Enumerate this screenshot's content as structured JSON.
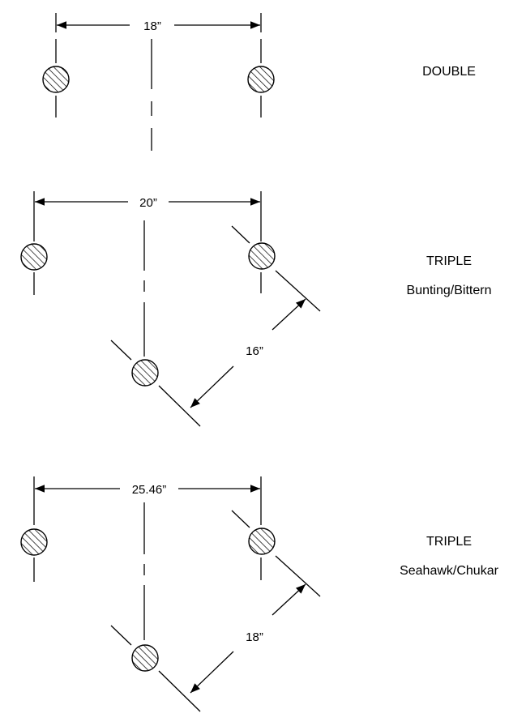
{
  "diagrams": [
    {
      "label": "DOUBLE",
      "sublabel": "",
      "width_dim": "18”",
      "diag_dim": ""
    },
    {
      "label": "TRIPLE",
      "sublabel": "Bunting/Bittern",
      "width_dim": "20”",
      "diag_dim": "16”"
    },
    {
      "label": "TRIPLE",
      "sublabel": "Seahawk/Chukar",
      "width_dim": "25.46”",
      "diag_dim": "18”"
    }
  ]
}
